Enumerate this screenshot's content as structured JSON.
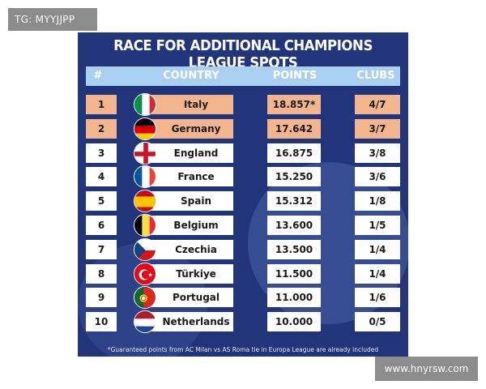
{
  "tag": "TG: MYYJJPP",
  "site": "www.hnyrsw.com",
  "title": "RACE FOR ADDITIONAL CHAMPIONS LEAGUE SPOTS",
  "headers": {
    "rank": "#",
    "country": "COUNTRY",
    "points": "POINTS",
    "clubs": "CLUBS"
  },
  "rows": [
    {
      "rank": "1",
      "country": "Italy",
      "points": "18.857*",
      "clubs": "4/7",
      "flag": "italy-flag-icon",
      "highlight": true
    },
    {
      "rank": "2",
      "country": "Germany",
      "points": "17.642",
      "clubs": "3/7",
      "flag": "germany-flag-icon",
      "highlight": true
    },
    {
      "rank": "3",
      "country": "England",
      "points": "16.875",
      "clubs": "3/8",
      "flag": "england-flag-icon",
      "highlight": false
    },
    {
      "rank": "4",
      "country": "France",
      "points": "15.250",
      "clubs": "3/6",
      "flag": "france-flag-icon",
      "highlight": false
    },
    {
      "rank": "5",
      "country": "Spain",
      "points": "15.312",
      "clubs": "1/8",
      "flag": "spain-flag-icon",
      "highlight": false
    },
    {
      "rank": "6",
      "country": "Belgium",
      "points": "13.600",
      "clubs": "1/5",
      "flag": "belgium-flag-icon",
      "highlight": false
    },
    {
      "rank": "7",
      "country": "Czechia",
      "points": "13.500",
      "clubs": "1/4",
      "flag": "czechia-flag-icon",
      "highlight": false
    },
    {
      "rank": "8",
      "country": "Türkiye",
      "points": "11.500",
      "clubs": "1/4",
      "flag": "turkiye-flag-icon",
      "highlight": false
    },
    {
      "rank": "9",
      "country": "Portugal",
      "points": "11.000",
      "clubs": "1/6",
      "flag": "portugal-flag-icon",
      "highlight": false
    },
    {
      "rank": "10",
      "country": "Netherlands",
      "points": "10.000",
      "clubs": "0/5",
      "flag": "netherlands-flag-icon",
      "highlight": false
    }
  ],
  "footnote": "*Guaranteed points from AC Milan vs AS Roma tie in Europa League are already included",
  "colors": {
    "background": "#22357a",
    "header": "#a9d0f0",
    "highlight": "#f2b58e",
    "cell": "#ffffff"
  }
}
